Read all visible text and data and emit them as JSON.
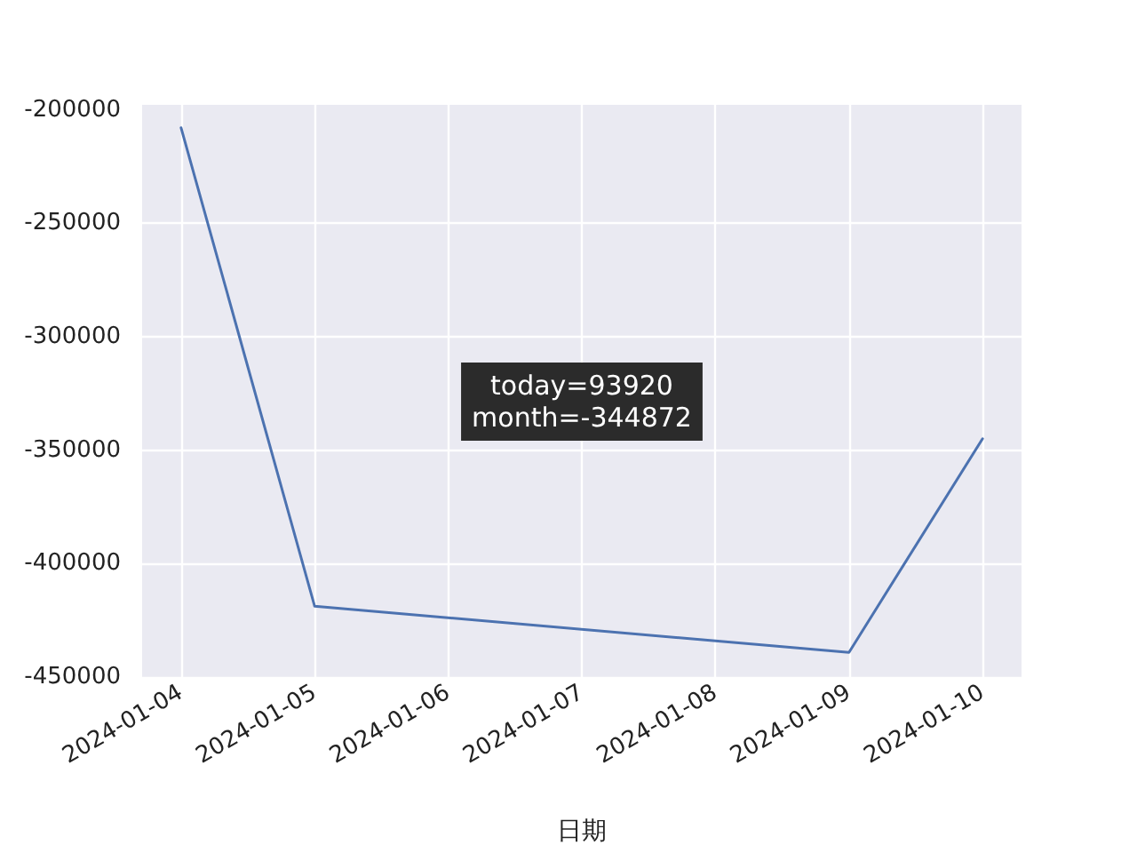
{
  "chart_data": {
    "type": "line",
    "xlabel": "日期",
    "x": [
      "2024-01-04",
      "2024-01-05",
      "2024-01-09",
      "2024-01-10"
    ],
    "series": [
      {
        "color": "#4c72b0",
        "values": [
          -207800,
          -418800,
          -439100,
          -344900
        ]
      }
    ],
    "xlim": [
      "2024-01-03T17:00",
      "2024-01-10T07:00"
    ],
    "xticks": [
      "2024-01-04",
      "2024-01-05",
      "2024-01-06",
      "2024-01-07",
      "2024-01-08",
      "2024-01-09",
      "2024-01-10"
    ],
    "ylim": [
      -450000,
      -197700
    ],
    "yticks": [
      -450000,
      -400000,
      -350000,
      -300000,
      -250000,
      -200000
    ],
    "annotations": [
      "today=93920\nmonth=-344872"
    ],
    "grid": true,
    "marker": "none",
    "line_style": "solid"
  }
}
